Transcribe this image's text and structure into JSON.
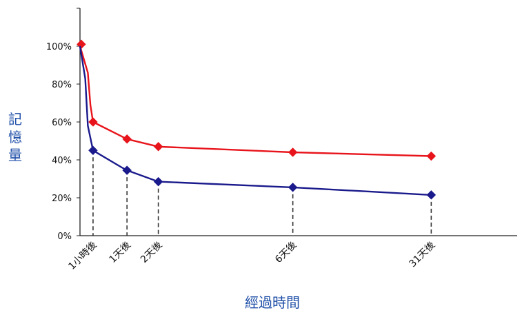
{
  "chart_data": {
    "type": "line",
    "title": "",
    "xlabel": "經過時間",
    "ylabel": "記憶量",
    "ylim": [
      0,
      100
    ],
    "yticks": [
      {
        "value": 0,
        "label": "0%"
      },
      {
        "value": 20,
        "label": "20%"
      },
      {
        "value": 40,
        "label": "40%"
      },
      {
        "value": 60,
        "label": "60%"
      },
      {
        "value": 80,
        "label": "80%"
      },
      {
        "value": 100,
        "label": "100%"
      }
    ],
    "xlim": [
      0,
      31
    ],
    "categories": [
      {
        "x": 1,
        "label": "1小時後"
      },
      {
        "x": 3.6,
        "label": "1天後"
      },
      {
        "x": 6,
        "label": "2天後"
      },
      {
        "x": 16.3,
        "label": "6天後"
      },
      {
        "x": 26.9,
        "label": "31天後"
      }
    ],
    "grid": false,
    "legend": "none",
    "series": [
      {
        "color": "#e8141b",
        "curve": [
          [
            0,
            100
          ],
          [
            0.6,
            86
          ],
          [
            0.8,
            69
          ],
          [
            1,
            60
          ],
          [
            3.6,
            51
          ],
          [
            6,
            47
          ],
          [
            16.3,
            44
          ],
          [
            26.9,
            42
          ]
        ],
        "markers": [
          [
            0.1,
            101
          ],
          [
            1,
            60
          ],
          [
            3.6,
            51
          ],
          [
            6,
            47
          ],
          [
            16.3,
            44
          ],
          [
            26.9,
            42
          ]
        ]
      },
      {
        "color": "#1a1a8c",
        "curve": [
          [
            0,
            100
          ],
          [
            0.4,
            83
          ],
          [
            0.6,
            58
          ],
          [
            1,
            45
          ],
          [
            3.2,
            36
          ],
          [
            3.6,
            34.5
          ],
          [
            6,
            28.5
          ],
          [
            16.3,
            25.5
          ],
          [
            26.9,
            21.5
          ]
        ],
        "markers": [
          [
            1,
            45
          ],
          [
            3.6,
            34.5
          ],
          [
            6,
            28.5
          ],
          [
            16.3,
            25.5
          ],
          [
            26.9,
            21.5
          ]
        ]
      }
    ],
    "colors": {
      "axis": "#222222",
      "dash": "#333333",
      "ylabel": "#1f4fa8",
      "xlabel": "#1f4fa8"
    }
  }
}
